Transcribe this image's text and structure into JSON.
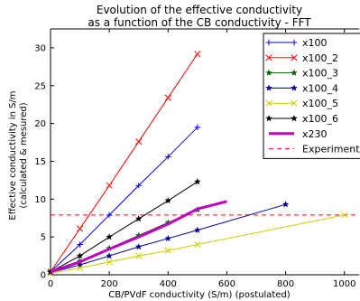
{
  "chart_data": {
    "type": "line",
    "title": "Evolution of the effective conductivity",
    "subtitle": "as a function of the CB conductivity - FFT",
    "xlabel": "CB/PVdF conductivity (S/m) (postulated)",
    "ylabel": "Effective conductivity in S/m",
    "ylabel2": "(calculated & mesured)",
    "xlim": [
      0,
      1050
    ],
    "ylim": [
      0,
      32.5
    ],
    "xticks": [
      0,
      200,
      400,
      600,
      800,
      1000
    ],
    "yticks": [
      0,
      5,
      10,
      15,
      20,
      25,
      30
    ],
    "grid": false,
    "legend_position": "top-right",
    "series": [
      {
        "name": "x100",
        "color": "#0000ff",
        "marker": "plus",
        "width": 1,
        "x": [
          0,
          100,
          200,
          300,
          400,
          500
        ],
        "y": [
          0.4,
          4.0,
          7.9,
          11.8,
          15.6,
          19.5
        ]
      },
      {
        "name": "x100_2",
        "color": "#ff0000",
        "marker": "x",
        "width": 1,
        "x": [
          0,
          100,
          200,
          300,
          400,
          500
        ],
        "y": [
          0.4,
          6.1,
          11.8,
          17.6,
          23.4,
          29.2
        ]
      },
      {
        "name": "x100_3",
        "color": "#006400",
        "marker": "star",
        "width": 1,
        "x": [
          0,
          100,
          200,
          300,
          400,
          500
        ],
        "y": [
          0.4,
          1.8,
          3.5,
          5.2,
          6.9,
          8.6
        ]
      },
      {
        "name": "x100_4",
        "color": "#00008b",
        "marker": "star",
        "width": 1,
        "x": [
          0,
          100,
          200,
          300,
          400,
          500,
          800
        ],
        "y": [
          0.3,
          1.3,
          2.5,
          3.7,
          4.8,
          5.9,
          9.3
        ]
      },
      {
        "name": "x100_5",
        "color": "#cccc00",
        "marker": "x",
        "width": 1,
        "x": [
          0,
          100,
          200,
          300,
          400,
          500,
          1000
        ],
        "y": [
          0.2,
          0.9,
          1.7,
          2.5,
          3.2,
          4.0,
          7.9
        ]
      },
      {
        "name": "x100_6",
        "color": "#000000",
        "marker": "star",
        "width": 1,
        "x": [
          0,
          100,
          200,
          300,
          400,
          500
        ],
        "y": [
          0.4,
          2.5,
          5.0,
          7.4,
          9.8,
          12.3
        ]
      },
      {
        "name": "x230",
        "color": "#bf00bf",
        "marker": "none",
        "width": 3,
        "x": [
          0,
          100,
          200,
          300,
          400,
          500,
          600
        ],
        "y": [
          0.4,
          1.7,
          3.4,
          5.0,
          6.7,
          8.7,
          9.7
        ]
      }
    ],
    "reference_lines": [
      {
        "name": "Experiment",
        "color": "#ff0000",
        "style": "dashed",
        "y": 7.9
      }
    ]
  }
}
